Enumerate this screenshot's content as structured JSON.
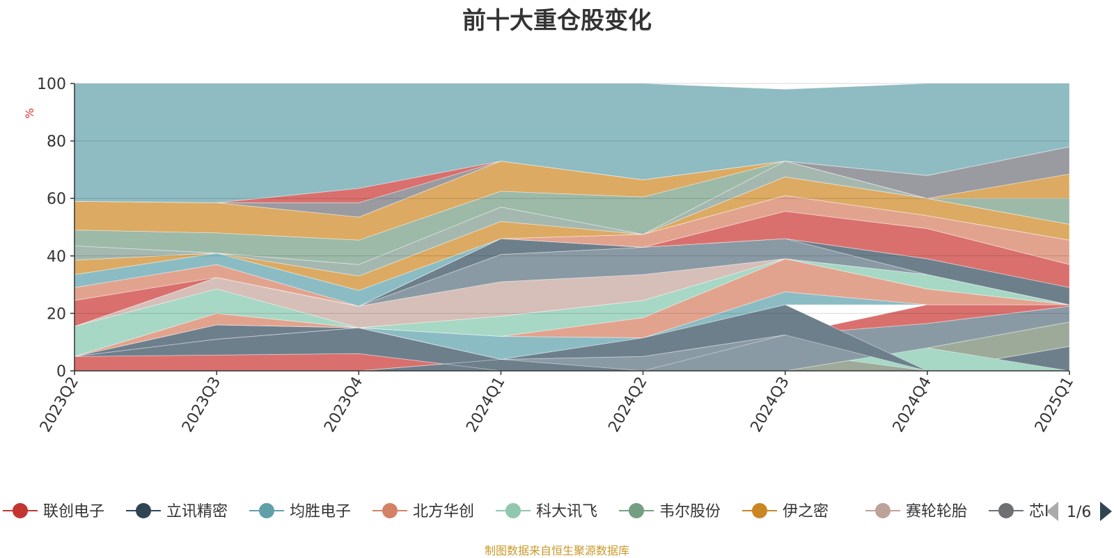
{
  "chart_data": {
    "type": "area",
    "title": "前十大重仓股变化",
    "ylabel": "%",
    "xlabel": "",
    "ylim": [
      0,
      100
    ],
    "yticks": [
      0,
      20,
      40,
      60,
      80,
      100
    ],
    "grid": true,
    "legend_position": "bottom",
    "legend_page": "1/6",
    "categories": [
      "2023Q2",
      "2023Q3",
      "2023Q4",
      "2024Q1",
      "2024Q2",
      "2024Q3",
      "2024Q4",
      "2025Q1"
    ],
    "bands": [
      {
        "lower": [
          0,
          0,
          0,
          0,
          0,
          0,
          0,
          0
        ],
        "upper": [
          5,
          5.5,
          6,
          0,
          0,
          0,
          0,
          0
        ],
        "color": "#d9706e"
      },
      {
        "lower": [
          0,
          0,
          0,
          0,
          0,
          0,
          0,
          0
        ],
        "upper": [
          0,
          0,
          0,
          4,
          0,
          0,
          0,
          8.5
        ],
        "color": "#6e7f8c"
      },
      {
        "lower": [
          0,
          0,
          0,
          0,
          0,
          0,
          0,
          0
        ],
        "upper": [
          0,
          0,
          0,
          0,
          0,
          6.5,
          0,
          0
        ],
        "color": "#e2a38e"
      },
      {
        "lower": [
          0,
          0,
          0,
          0,
          0,
          0,
          0,
          8.5
        ],
        "upper": [
          0,
          0,
          0,
          0,
          0,
          0,
          8,
          17
        ],
        "color": "#9eaa99"
      },
      {
        "lower": [
          0,
          0,
          0,
          0,
          0,
          6.5,
          0,
          0
        ],
        "upper": [
          0,
          0,
          0,
          0,
          0,
          6.5,
          8,
          0
        ],
        "color": "#a7d7c5"
      },
      {
        "lower": [
          5,
          5.5,
          6,
          0,
          0,
          0,
          0,
          0
        ],
        "upper": [
          5,
          11,
          15,
          4,
          5,
          0,
          0,
          0
        ],
        "color": "#6e7f8c"
      },
      {
        "lower": [
          0,
          0,
          0,
          4,
          0,
          0,
          8,
          17
        ],
        "upper": [
          0,
          0,
          0,
          4,
          5,
          12.5,
          16.5,
          22.5
        ],
        "color": "#8a9aa4"
      },
      {
        "lower": [
          0,
          0,
          0,
          0,
          0,
          12.5,
          16.5,
          22.5
        ],
        "upper": [
          0,
          0,
          0,
          0,
          0,
          12.5,
          23,
          23
        ],
        "color": "#d9706e"
      },
      {
        "lower": [
          5,
          11,
          15,
          4,
          5,
          12.5,
          0,
          0
        ],
        "upper": [
          5,
          16,
          15,
          4,
          11.5,
          23,
          0,
          0
        ],
        "color": "#6e7f8c"
      },
      {
        "lower": [
          5,
          16,
          15,
          4,
          11.5,
          23,
          23,
          23
        ],
        "upper": [
          5,
          16,
          15,
          12,
          11.5,
          27.5,
          23,
          23
        ],
        "color": "#8bbcc4"
      },
      {
        "lower": [
          5,
          16,
          15,
          12,
          11.5,
          27.5,
          23,
          23
        ],
        "upper": [
          5,
          20,
          15,
          12,
          18.5,
          39,
          28.5,
          23
        ],
        "color": "#e2a38e"
      },
      {
        "lower": [
          5,
          20,
          15,
          12,
          18.5,
          39,
          28.5,
          23
        ],
        "upper": [
          15.5,
          28.5,
          15,
          19,
          24.5,
          39,
          33.5,
          23
        ],
        "color": "#a7d7c5"
      },
      {
        "lower": [
          15.5,
          28.5,
          15,
          19,
          24.5,
          39,
          33.5,
          23
        ],
        "upper": [
          15.5,
          32.5,
          22.5,
          31,
          33.5,
          39,
          33.5,
          23
        ],
        "color": "#d6bfb8"
      },
      {
        "lower": [
          15.5,
          32.5,
          22.5,
          31,
          33.5,
          39,
          33.5,
          23
        ],
        "upper": [
          15.5,
          32.5,
          22.5,
          40.5,
          43,
          46,
          33.5,
          23
        ],
        "color": "#8a9aa4"
      },
      {
        "lower": [
          15.5,
          32.5,
          22.5,
          40.5,
          43,
          46,
          33.5,
          23
        ],
        "upper": [
          15.5,
          32.5,
          22.5,
          46,
          43,
          46,
          39,
          29
        ],
        "color": "#6e7f8c"
      },
      {
        "lower": [
          15.5,
          32.5,
          22.5,
          46,
          43,
          46,
          39,
          29
        ],
        "upper": [
          24.5,
          32.5,
          22.5,
          46,
          43,
          55.5,
          49.5,
          37
        ],
        "color": "#d9706e"
      },
      {
        "lower": [
          24.5,
          32.5,
          22.5,
          46,
          43,
          55.5,
          49.5,
          37
        ],
        "upper": [
          29,
          37,
          22.5,
          46,
          47.5,
          61,
          54,
          45.5
        ],
        "color": "#e2a38e"
      },
      {
        "lower": [
          29,
          37,
          22.5,
          46,
          47.5,
          61,
          54,
          45.5
        ],
        "upper": [
          33.5,
          41,
          28,
          46,
          47.5,
          61,
          54,
          45.5
        ],
        "color": "#8bbcc4"
      },
      {
        "lower": [
          33.5,
          41,
          28,
          46,
          47.5,
          61,
          54,
          45.5
        ],
        "upper": [
          38.5,
          41,
          33,
          52,
          47.5,
          67.5,
          60,
          51
        ],
        "color": "#dcaa62"
      },
      {
        "lower": [
          38.5,
          41,
          33,
          52,
          47.5,
          67.5,
          60,
          51
        ],
        "upper": [
          43.5,
          41,
          37,
          57,
          47.5,
          73,
          60,
          51
        ],
        "color": "#a4b8b0"
      },
      {
        "lower": [
          43.5,
          41,
          37,
          57,
          47.5,
          73,
          60,
          51
        ],
        "upper": [
          49,
          48,
          45.5,
          62.5,
          60.5,
          73,
          60,
          60
        ],
        "color": "#9db9a8"
      },
      {
        "lower": [
          49,
          48,
          45.5,
          62.5,
          60.5,
          73,
          60,
          60
        ],
        "upper": [
          59,
          58.5,
          53.5,
          73,
          66.5,
          73,
          60,
          68.5
        ],
        "color": "#dcaa62"
      },
      {
        "lower": [
          59,
          58.5,
          53.5,
          73,
          66.5,
          73,
          60,
          68.5
        ],
        "upper": [
          59,
          58.5,
          58.5,
          73,
          66.5,
          73,
          68,
          78
        ],
        "color": "#9a9ba0"
      },
      {
        "lower": [
          59,
          58.5,
          58.5,
          73,
          66.5,
          73,
          68,
          78
        ],
        "upper": [
          59,
          58.5,
          63.5,
          73,
          66.5,
          73,
          68,
          78
        ],
        "color": "#d9706e"
      },
      {
        "lower": [
          59,
          58.5,
          63.5,
          73,
          66.5,
          73,
          68,
          78
        ],
        "upper": [
          100,
          100,
          100,
          100,
          100,
          98,
          100,
          100
        ],
        "color": "#8fbbc2"
      }
    ],
    "series": [
      {
        "name": "联创电子",
        "color": "#c23531"
      },
      {
        "name": "立讯精密",
        "color": "#2f4554"
      },
      {
        "name": "均胜电子",
        "color": "#61a0a8"
      },
      {
        "name": "北方华创",
        "color": "#d48265"
      },
      {
        "name": "科大讯飞",
        "color": "#91c7ae"
      },
      {
        "name": "韦尔股份",
        "color": "#749f83"
      },
      {
        "name": "伊之密",
        "color": "#ca8622"
      },
      {
        "name": "赛轮轮胎",
        "color": "#bda29a"
      },
      {
        "name": "芯I",
        "color": "#6e7074"
      }
    ]
  },
  "footer": {
    "source": "制图数据来自恒生聚源数据库"
  }
}
